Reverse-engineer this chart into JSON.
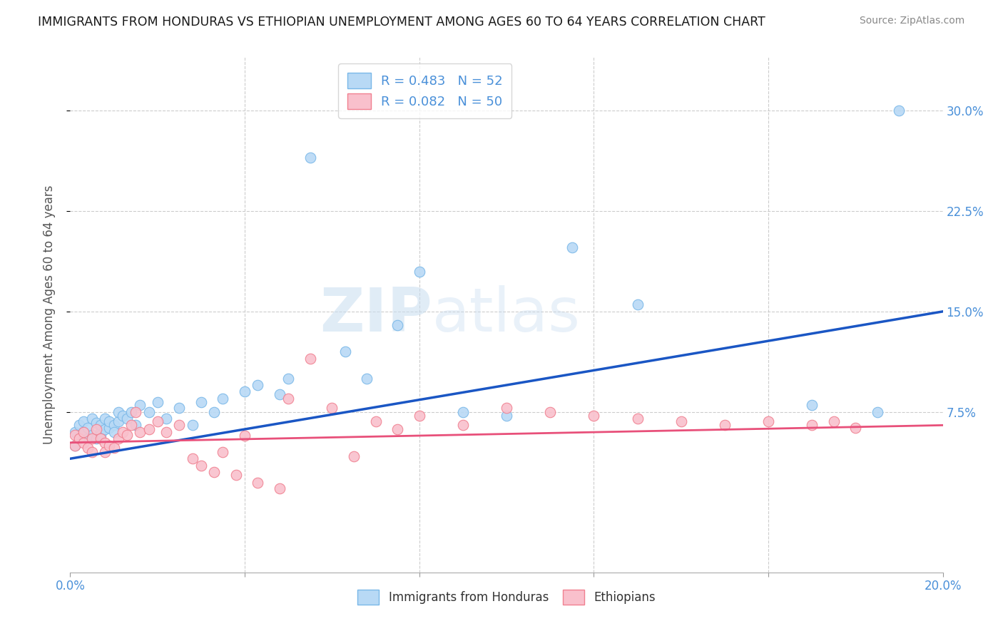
{
  "title": "IMMIGRANTS FROM HONDURAS VS ETHIOPIAN UNEMPLOYMENT AMONG AGES 60 TO 64 YEARS CORRELATION CHART",
  "source": "Source: ZipAtlas.com",
  "ylabel": "Unemployment Among Ages 60 to 64 years",
  "xlim": [
    0.0,
    0.2
  ],
  "ylim": [
    -0.045,
    0.34
  ],
  "xtick_positions": [
    0.0,
    0.04,
    0.08,
    0.12,
    0.16,
    0.2
  ],
  "xtick_labels": [
    "0.0%",
    "",
    "",
    "",
    "",
    "20.0%"
  ],
  "yticks": [
    0.075,
    0.15,
    0.225,
    0.3
  ],
  "ytick_labels": [
    "7.5%",
    "15.0%",
    "22.5%",
    "30.0%"
  ],
  "background_color": "#ffffff",
  "grid_color": "#cccccc",
  "blue_scatter_color": "#b8d9f5",
  "blue_scatter_edge": "#7ab8e8",
  "pink_scatter_color": "#f9c0cc",
  "pink_scatter_edge": "#f08090",
  "blue_line_color": "#1a56c4",
  "pink_line_color": "#e8507a",
  "blue_R": 0.483,
  "blue_N": 52,
  "pink_R": 0.082,
  "pink_N": 50,
  "legend_label_blue": "Immigrants from Honduras",
  "legend_label_pink": "Ethiopians",
  "blue_line_x0": 0.0,
  "blue_line_y0": 0.04,
  "blue_line_x1": 0.2,
  "blue_line_y1": 0.15,
  "pink_line_x0": 0.0,
  "pink_line_y0": 0.052,
  "pink_line_x1": 0.2,
  "pink_line_y1": 0.065,
  "blue_scatter_x": [
    0.001,
    0.001,
    0.002,
    0.002,
    0.003,
    0.003,
    0.004,
    0.004,
    0.005,
    0.005,
    0.006,
    0.006,
    0.007,
    0.007,
    0.007,
    0.008,
    0.008,
    0.009,
    0.009,
    0.01,
    0.01,
    0.011,
    0.011,
    0.012,
    0.013,
    0.014,
    0.015,
    0.016,
    0.018,
    0.02,
    0.022,
    0.025,
    0.028,
    0.03,
    0.033,
    0.035,
    0.04,
    0.043,
    0.048,
    0.05,
    0.055,
    0.063,
    0.068,
    0.075,
    0.08,
    0.09,
    0.1,
    0.115,
    0.13,
    0.17,
    0.185,
    0.19
  ],
  "blue_scatter_y": [
    0.05,
    0.06,
    0.055,
    0.065,
    0.06,
    0.068,
    0.055,
    0.063,
    0.058,
    0.07,
    0.055,
    0.067,
    0.06,
    0.065,
    0.058,
    0.062,
    0.07,
    0.063,
    0.068,
    0.065,
    0.06,
    0.068,
    0.075,
    0.072,
    0.07,
    0.075,
    0.065,
    0.08,
    0.075,
    0.082,
    0.07,
    0.078,
    0.065,
    0.082,
    0.075,
    0.085,
    0.09,
    0.095,
    0.088,
    0.1,
    0.265,
    0.12,
    0.1,
    0.14,
    0.18,
    0.075,
    0.072,
    0.198,
    0.155,
    0.08,
    0.075,
    0.3
  ],
  "pink_scatter_x": [
    0.001,
    0.001,
    0.002,
    0.003,
    0.003,
    0.004,
    0.005,
    0.005,
    0.006,
    0.007,
    0.008,
    0.008,
    0.009,
    0.01,
    0.011,
    0.012,
    0.013,
    0.014,
    0.015,
    0.016,
    0.018,
    0.02,
    0.022,
    0.025,
    0.028,
    0.03,
    0.033,
    0.035,
    0.038,
    0.04,
    0.043,
    0.048,
    0.05,
    0.055,
    0.06,
    0.065,
    0.07,
    0.075,
    0.08,
    0.09,
    0.1,
    0.11,
    0.12,
    0.13,
    0.14,
    0.15,
    0.16,
    0.17,
    0.175,
    0.18
  ],
  "pink_scatter_y": [
    0.05,
    0.058,
    0.055,
    0.052,
    0.06,
    0.048,
    0.055,
    0.045,
    0.062,
    0.055,
    0.052,
    0.045,
    0.05,
    0.048,
    0.055,
    0.06,
    0.058,
    0.065,
    0.075,
    0.06,
    0.062,
    0.068,
    0.06,
    0.065,
    0.04,
    0.035,
    0.03,
    0.045,
    0.028,
    0.057,
    0.022,
    0.018,
    0.085,
    0.115,
    0.078,
    0.042,
    0.068,
    0.062,
    0.072,
    0.065,
    0.078,
    0.075,
    0.072,
    0.07,
    0.068,
    0.065,
    0.068,
    0.065,
    0.068,
    0.063
  ],
  "watermark_zip": "ZIP",
  "watermark_atlas": "atlas"
}
